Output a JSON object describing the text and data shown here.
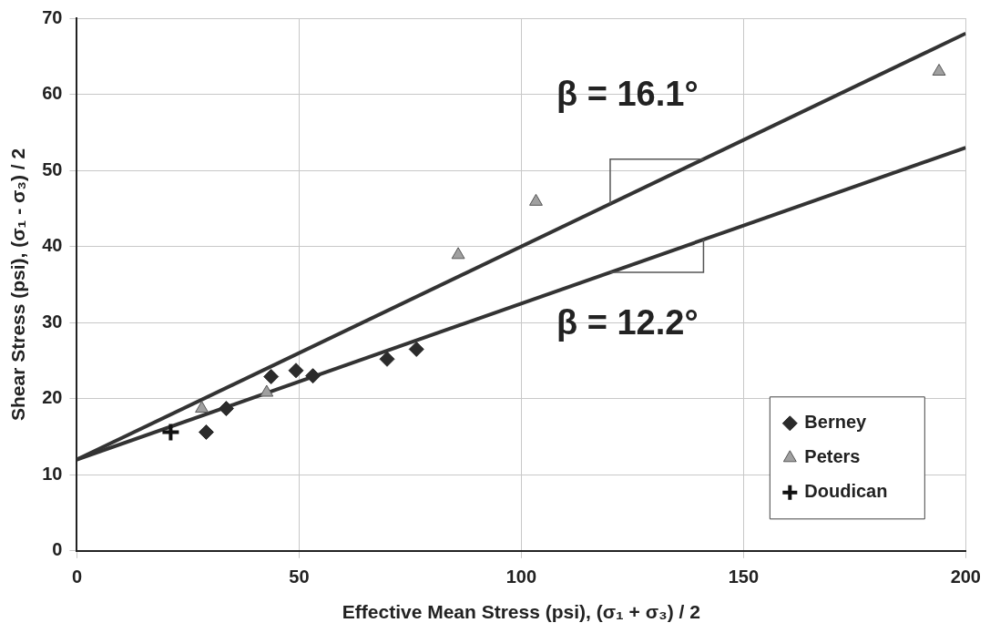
{
  "chart_data": {
    "type": "scatter",
    "xlabel": "Effective Mean Stress (psi), (σ₁ + σ₃) / 2",
    "ylabel": "Shear Stress (psi), (σ₁ - σ₃) / 2",
    "xlim": [
      0,
      200
    ],
    "xticks": [
      0,
      50,
      100,
      150,
      200
    ],
    "ylim": [
      0,
      70
    ],
    "yticks": [
      0,
      10,
      20,
      30,
      40,
      50,
      60,
      70
    ],
    "grid": true,
    "legend": "bottom right",
    "series": [
      {
        "name": "Berney",
        "color": "#2b2b2b",
        "marker": "diamond",
        "x": [
          29.1,
          33.6,
          43.7,
          49.3,
          53.1,
          69.8,
          76.4
        ],
        "values": [
          15.6,
          18.7,
          22.9,
          23.7,
          23.0,
          25.2,
          26.5
        ]
      },
      {
        "name": "Peters",
        "color": "#a0a0a0",
        "marker": "triangle",
        "x": [
          28.1,
          42.7,
          85.8,
          103.3,
          194
        ],
        "values": [
          18.7,
          20.8,
          38.9,
          45.9,
          63
        ]
      },
      {
        "name": "Doudican",
        "color": "#111111",
        "marker": "cross",
        "x": [
          21.1
        ],
        "values": [
          15.6
        ]
      },
      {
        "type": "line",
        "color": "#333333",
        "x": [
          0,
          200
        ],
        "values": [
          12,
          68
        ]
      },
      {
        "type": "line",
        "color": "#333333",
        "x": [
          0,
          200
        ],
        "values": [
          12,
          53
        ]
      }
    ],
    "annotations": [
      {
        "text": "β = 16.1°",
        "x": 130,
        "y": 48.4
      },
      {
        "text": "β = 12.2°",
        "x": 130,
        "y": 38.7
      }
    ]
  }
}
